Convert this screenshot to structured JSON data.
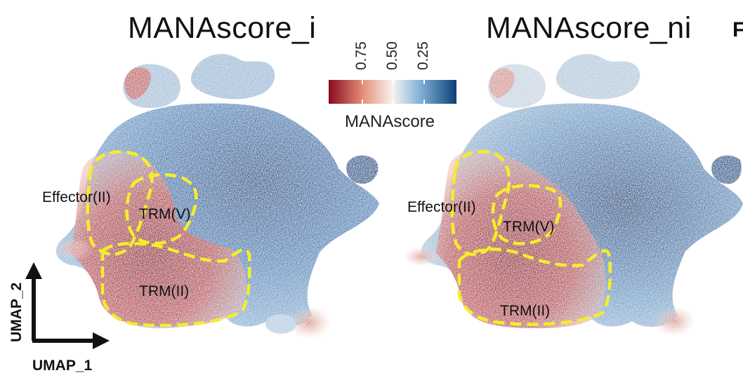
{
  "panels": [
    {
      "title": "MANAscore_i",
      "regions": [
        "Effector(II)",
        "TRM(V)",
        "TRM(II)"
      ]
    },
    {
      "title": "MANAscore_ni",
      "regions": [
        "Effector(II)",
        "TRM(V)",
        "TRM(II)"
      ]
    }
  ],
  "legend": {
    "title": "MANAscore",
    "ticks": [
      "0.75",
      "0.50",
      "0.25"
    ],
    "colors": {
      "high": "#8b0a1e",
      "mid": "#f7f4f0",
      "low": "#0d3f78"
    }
  },
  "axes": {
    "x": "UMAP_1",
    "y": "UMAP_2"
  },
  "next_panel_letter": "F",
  "outline_color": "#f4ee2a"
}
